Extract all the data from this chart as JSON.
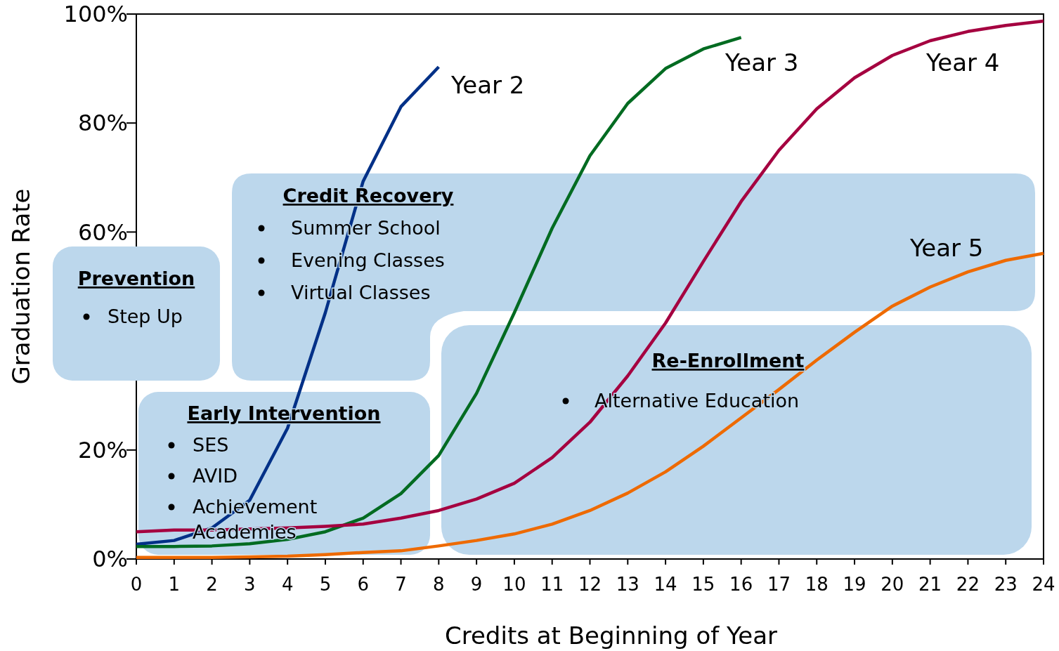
{
  "chart_data": {
    "type": "line",
    "xlabel": "Credits at Beginning of Year",
    "ylabel": "Graduation Rate",
    "xlim": [
      0,
      24
    ],
    "xticks": [
      0,
      1,
      2,
      3,
      4,
      5,
      6,
      7,
      8,
      9,
      10,
      11,
      12,
      13,
      14,
      15,
      16,
      17,
      18,
      19,
      20,
      21,
      22,
      23,
      24
    ],
    "ylim": [
      0,
      100
    ],
    "yticks": [
      {
        "value": 0,
        "label": "0%"
      },
      {
        "value": 20,
        "label": "20%"
      },
      {
        "value": 40,
        "label": null
      },
      {
        "value": 60,
        "label": "60%"
      },
      {
        "value": 80,
        "label": "80%"
      },
      {
        "value": 100,
        "label": "100%"
      }
    ],
    "grid": false,
    "legend": false,
    "marker": "none",
    "line_style": "solid",
    "series": [
      {
        "name": "Year 2",
        "color": "#003087",
        "x": [
          0,
          1,
          2,
          3,
          4,
          5,
          6,
          7,
          8
        ],
        "values": [
          2.7,
          3.4,
          5.7,
          10.8,
          24,
          45.2,
          69.3,
          83,
          90.3
        ]
      },
      {
        "name": "Year 3",
        "color": "#006b21",
        "x": [
          0,
          1,
          2,
          3,
          4,
          5,
          6,
          7,
          8,
          9,
          10,
          11,
          12,
          13,
          14,
          15,
          16
        ],
        "values": [
          2.3,
          2.3,
          2.4,
          2.8,
          3.6,
          5,
          7.5,
          12,
          19,
          30.4,
          45.2,
          60.7,
          74,
          83.6,
          90,
          93.6,
          95.7
        ]
      },
      {
        "name": "Year 4",
        "color": "#a50040",
        "x": [
          0,
          1,
          2,
          3,
          4,
          5,
          6,
          7,
          8,
          9,
          10,
          11,
          12,
          13,
          14,
          15,
          16,
          17,
          18,
          19,
          20,
          21,
          22,
          23,
          24
        ],
        "values": [
          5,
          5.3,
          5.3,
          5.5,
          5.7,
          6,
          6.4,
          7.5,
          8.9,
          11,
          13.9,
          18.6,
          25.1,
          33.6,
          43.3,
          54.6,
          65.6,
          75,
          82.6,
          88.3,
          92.4,
          95.1,
          96.8,
          97.9,
          98.7
        ]
      },
      {
        "name": "Year 5",
        "color": "#ee6a00",
        "x": [
          0,
          1,
          2,
          3,
          4,
          5,
          6,
          7,
          8,
          9,
          10,
          11,
          12,
          13,
          14,
          15,
          16,
          17,
          18,
          19,
          20,
          21,
          22,
          23,
          24
        ],
        "values": [
          0.3,
          0.3,
          0.3,
          0.4,
          0.5,
          0.8,
          1.2,
          1.5,
          2.4,
          3.4,
          4.6,
          6.4,
          8.9,
          12.1,
          16,
          20.7,
          25.9,
          31.1,
          36.5,
          41.6,
          46.4,
          49.9,
          52.7,
          54.8,
          56.1
        ]
      }
    ],
    "annotations": [
      "Prevention",
      "Step Up",
      "Credit Recovery",
      "Summer School",
      "Evening Classes",
      "Virtual Classes",
      "Early Intervention",
      "SES",
      "AVID",
      "Achievement Academies",
      "Re-Enrollment",
      "Alternative Education"
    ]
  }
}
